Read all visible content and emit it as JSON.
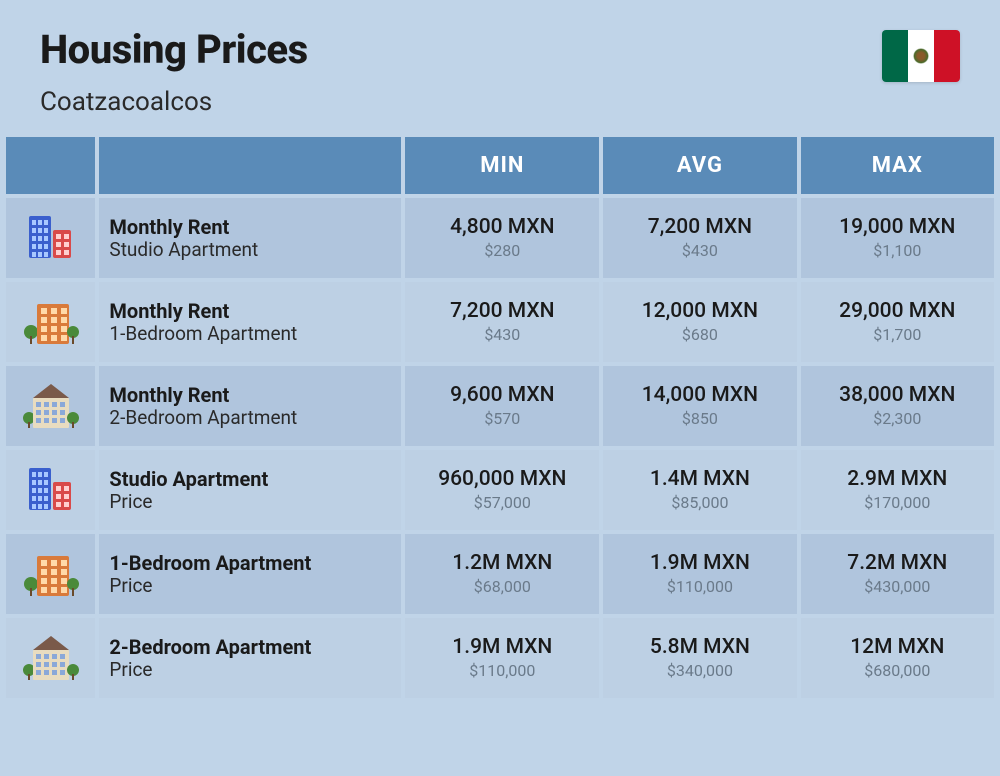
{
  "header": {
    "title": "Housing Prices",
    "subtitle": "Coatzacoalcos"
  },
  "flag": {
    "colors": {
      "green": "#006847",
      "white": "#ffffff",
      "red": "#ce1126"
    }
  },
  "table": {
    "header_bg": "#5a8bb8",
    "header_text": "#ffffff",
    "row_bg_a": "#b0c5dd",
    "row_bg_b": "#bdd0e4",
    "columns": [
      "MIN",
      "AVG",
      "MAX"
    ],
    "rows": [
      {
        "icon": "building-blue-red",
        "title": "Monthly Rent",
        "sub": "Studio Apartment",
        "min": {
          "mxn": "4,800 MXN",
          "usd": "$280"
        },
        "avg": {
          "mxn": "7,200 MXN",
          "usd": "$430"
        },
        "max": {
          "mxn": "19,000 MXN",
          "usd": "$1,100"
        }
      },
      {
        "icon": "building-orange",
        "title": "Monthly Rent",
        "sub": "1-Bedroom Apartment",
        "min": {
          "mxn": "7,200 MXN",
          "usd": "$430"
        },
        "avg": {
          "mxn": "12,000 MXN",
          "usd": "$680"
        },
        "max": {
          "mxn": "29,000 MXN",
          "usd": "$1,700"
        }
      },
      {
        "icon": "building-house",
        "title": "Monthly Rent",
        "sub": "2-Bedroom Apartment",
        "min": {
          "mxn": "9,600 MXN",
          "usd": "$570"
        },
        "avg": {
          "mxn": "14,000 MXN",
          "usd": "$850"
        },
        "max": {
          "mxn": "38,000 MXN",
          "usd": "$2,300"
        }
      },
      {
        "icon": "building-blue-red",
        "title": "Studio Apartment",
        "sub": "Price",
        "min": {
          "mxn": "960,000 MXN",
          "usd": "$57,000"
        },
        "avg": {
          "mxn": "1.4M MXN",
          "usd": "$85,000"
        },
        "max": {
          "mxn": "2.9M MXN",
          "usd": "$170,000"
        }
      },
      {
        "icon": "building-orange",
        "title": "1-Bedroom Apartment",
        "sub": "Price",
        "min": {
          "mxn": "1.2M MXN",
          "usd": "$68,000"
        },
        "avg": {
          "mxn": "1.9M MXN",
          "usd": "$110,000"
        },
        "max": {
          "mxn": "7.2M MXN",
          "usd": "$430,000"
        }
      },
      {
        "icon": "building-house",
        "title": "2-Bedroom Apartment",
        "sub": "Price",
        "min": {
          "mxn": "1.9M MXN",
          "usd": "$110,000"
        },
        "avg": {
          "mxn": "5.8M MXN",
          "usd": "$340,000"
        },
        "max": {
          "mxn": "12M MXN",
          "usd": "$680,000"
        }
      }
    ]
  },
  "icons": {
    "building-blue-red": {
      "type": "two-towers",
      "left": "#3a5fcd",
      "right": "#d94a4a",
      "window": "#a8c8ff"
    },
    "building-orange": {
      "type": "block",
      "body": "#d97a3a",
      "window": "#ffd9a8",
      "tree": "#4a8a3a"
    },
    "building-house": {
      "type": "house",
      "body": "#e8dcc0",
      "roof": "#7a5a4a",
      "window": "#8aa8d8",
      "tree": "#4a8a3a"
    }
  }
}
